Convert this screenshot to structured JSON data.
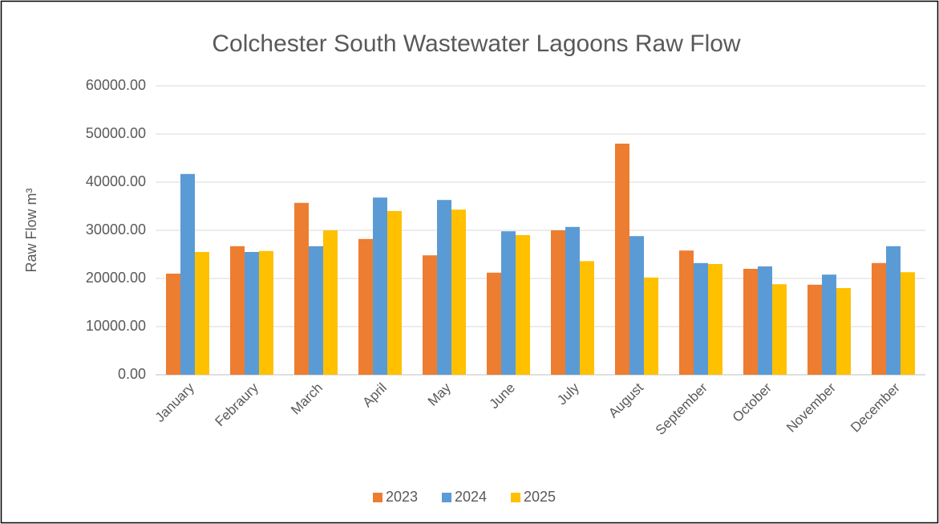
{
  "chart_data": {
    "type": "bar",
    "title": "Colchester South Wastewater Lagoons Raw Flow",
    "y_label": "Raw Flow m³",
    "categories": [
      "January",
      "Febraury",
      "March",
      "April",
      "May",
      "June",
      "July",
      "August",
      "September",
      "October",
      "November",
      "December"
    ],
    "series": [
      {
        "name": "2023",
        "color": "#ed7d31",
        "values": [
          21000,
          26700,
          35700,
          28200,
          24800,
          21200,
          30000,
          48000,
          25800,
          22000,
          18700,
          23200
        ]
      },
      {
        "name": "2024",
        "color": "#5b9bd5",
        "values": [
          41700,
          25500,
          26700,
          36800,
          36300,
          29800,
          30700,
          28800,
          23200,
          22500,
          20800,
          26700
        ]
      },
      {
        "name": "2025",
        "color": "#ffc000",
        "values": [
          25500,
          25700,
          30000,
          34000,
          34300,
          29000,
          23600,
          20200,
          23000,
          18800,
          18000,
          21300
        ]
      }
    ],
    "ylim": [
      0,
      60000
    ],
    "yticks": [
      {
        "value": 0,
        "label": "0.00"
      },
      {
        "value": 10000,
        "label": "10000.00"
      },
      {
        "value": 20000,
        "label": "20000.00"
      },
      {
        "value": 30000,
        "label": "30000.00"
      },
      {
        "value": 40000,
        "label": "40000.00"
      },
      {
        "value": 50000,
        "label": "50000.00"
      },
      {
        "value": 60000,
        "label": "60000.00"
      }
    ],
    "grid": true,
    "legend": "bottom"
  }
}
